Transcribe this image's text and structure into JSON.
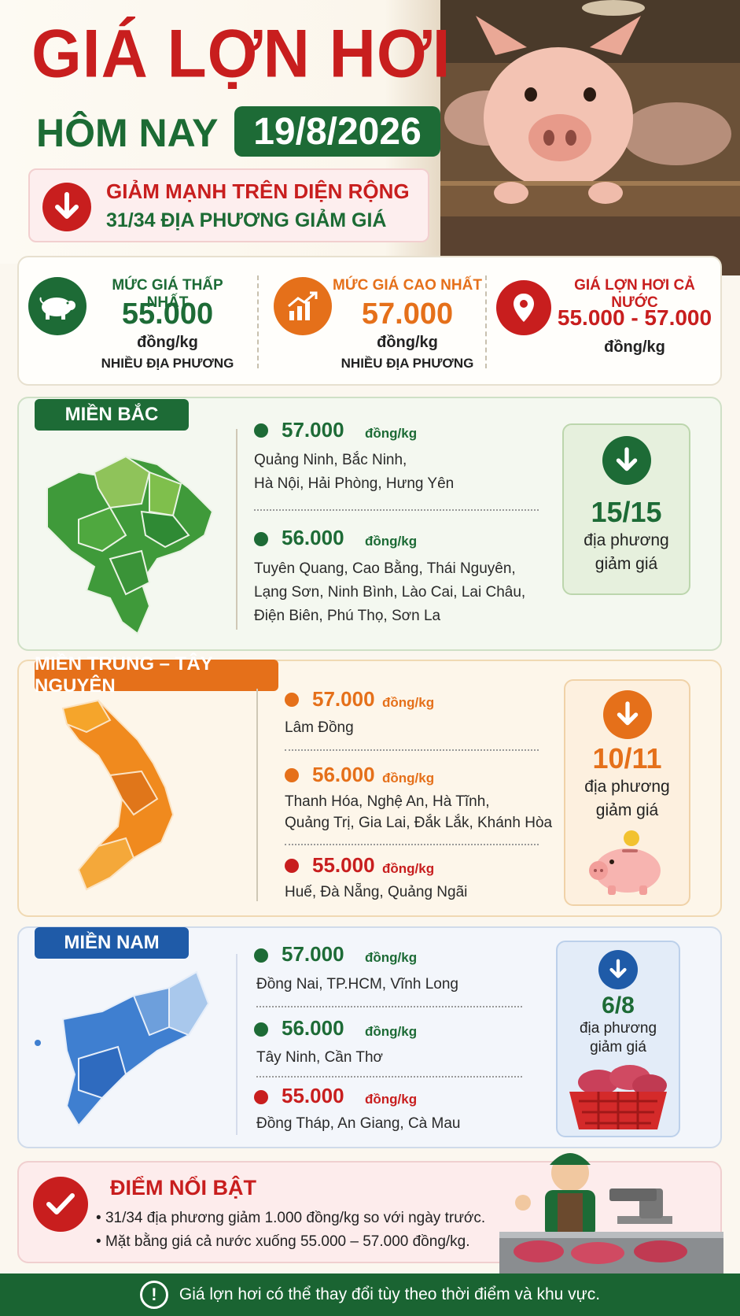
{
  "header": {
    "title": "GIÁ LỢN HƠI",
    "subtitle": "HÔM NAY",
    "date": "19/8/2026",
    "alert_line1": "GIẢM MẠNH TRÊN DIỆN RỘNG",
    "alert_line2": "31/34 ĐỊA PHƯƠNG GIẢM GIÁ"
  },
  "stats": {
    "low": {
      "label": "MỨC GIÁ THẤP NHẤT",
      "value": "55.000",
      "unit": "đồng/kg",
      "note": "NHIỀU ĐỊA PHƯƠNG"
    },
    "high": {
      "label": "MỨC GIÁ CAO NHẤT",
      "value": "57.000",
      "unit": "đồng/kg",
      "note": "NHIỀU ĐỊA PHƯƠNG"
    },
    "national": {
      "label": "GIÁ LỢN HƠI CẢ NƯỚC",
      "value": "55.000 - 57.000",
      "unit": "đồng/kg"
    }
  },
  "north": {
    "tag": "MIỀN BẮC",
    "g1": {
      "price": "57.000",
      "unit": "đồng/kg",
      "l1": "Quảng Ninh, Bắc Ninh,",
      "l2": "Hà Nội, Hải Phòng, Hưng Yên"
    },
    "g2": {
      "price": "56.000",
      "unit": "đồng/kg",
      "l1": "Tuyên Quang, Cao Bằng, Thái Nguyên,",
      "l2": "Lạng Sơn, Ninh Bình, Lào Cai, Lai Châu,",
      "l3": "Điện Biên, Phú Thọ, Sơn La"
    },
    "summary": {
      "count": "15/15",
      "t1": "địa phương",
      "t2": "giảm giá"
    }
  },
  "central": {
    "tag": "MIỀN TRUNG – TÂY NGUYÊN",
    "g1": {
      "price": "57.000",
      "unit": "đồng/kg",
      "l1": "Lâm Đồng"
    },
    "g2": {
      "price": "56.000",
      "unit": "đồng/kg",
      "l1": "Thanh Hóa, Nghệ An, Hà Tĩnh,",
      "l2": "Quảng Trị, Gia Lai, Đắk Lắk, Khánh Hòa"
    },
    "g3": {
      "price": "55.000",
      "unit": "đồng/kg",
      "l1": "Huế, Đà Nẵng, Quảng Ngãi"
    },
    "summary": {
      "count": "10/11",
      "t1": "địa phương",
      "t2": "giảm giá"
    }
  },
  "south": {
    "tag": "MIỀN NAM",
    "g1": {
      "price": "57.000",
      "unit": "đồng/kg",
      "l1": "Đồng Nai, TP.HCM, Vĩnh Long"
    },
    "g2": {
      "price": "56.000",
      "unit": "đồng/kg",
      "l1": "Tây Ninh, Cần Thơ"
    },
    "g3": {
      "price": "55.000",
      "unit": "đồng/kg",
      "l1": "Đồng Tháp, An Giang, Cà Mau"
    },
    "summary": {
      "count": "6/8",
      "t1": "địa phương",
      "t2": "giảm giá"
    }
  },
  "highlights": {
    "title": "ĐIỂM NỔI BẬT",
    "items": [
      "31/34 địa phương giảm 1.000 đồng/kg so với ngày trước.",
      "Mặt bằng giá cả nước xuống 55.000 – 57.000 đồng/kg."
    ]
  },
  "footer": {
    "text": "Giá lợn hơi có thể thay đổi tùy theo thời điểm và khu vực."
  },
  "colors": {
    "red": "#c81e1e",
    "green": "#1d6b36",
    "orange": "#e5701a",
    "blue": "#1f5ba8"
  }
}
